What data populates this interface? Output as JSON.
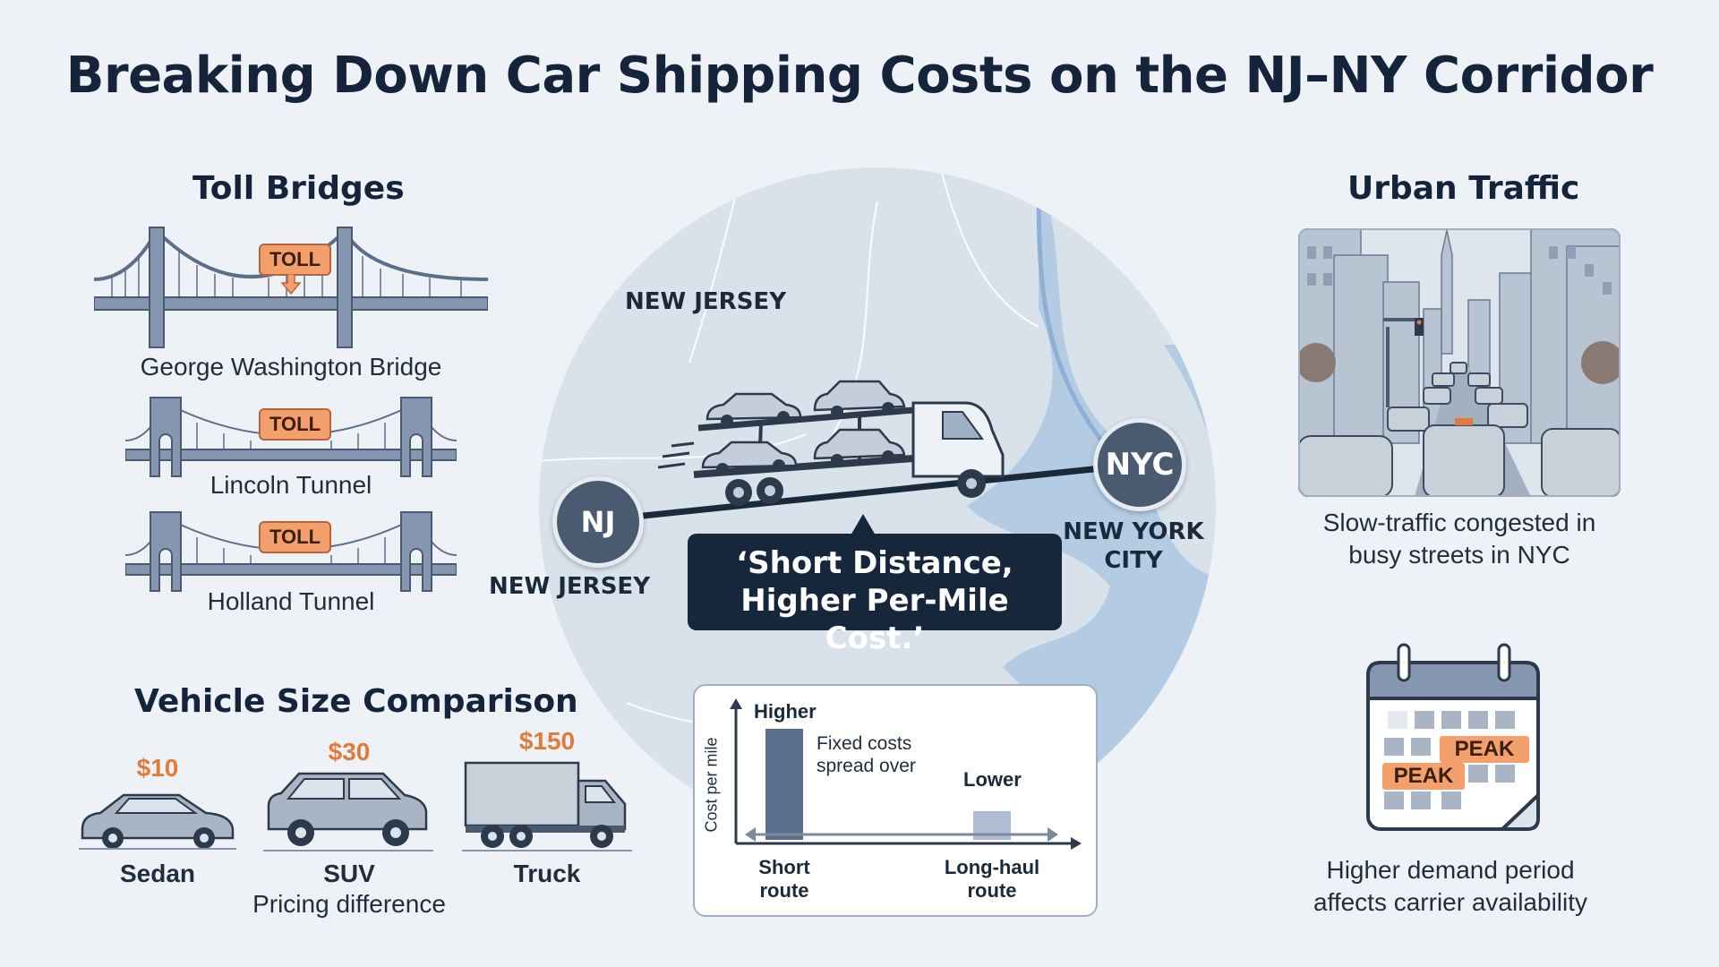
{
  "title": "Breaking Down Car Shipping Costs on the NJ–NY Corridor",
  "toll_bridges": {
    "heading": "Toll Bridges",
    "toll_label": "TOLL",
    "items": [
      {
        "name": "George Washington Bridge"
      },
      {
        "name": "Lincoln Tunnel"
      },
      {
        "name": "Holland Tunnel"
      }
    ]
  },
  "map": {
    "label_nj_top": "NEW JERSEY",
    "label_nj_bottom": "NEW JERSEY",
    "nj_badge": "NJ",
    "nyc_badge": "NYC",
    "nyc_label_line1": "NEW YORK",
    "nyc_label_line2": "CITY",
    "callout_line1": "‘Short Distance,",
    "callout_line2": "Higher Per-Mile Cost.’"
  },
  "urban_traffic": {
    "heading": "Urban Traffic",
    "caption_line1": "Slow-traffic congested in",
    "caption_line2": "busy streets in NYC"
  },
  "vehicle_size": {
    "heading": "Vehicle Size Comparison",
    "vehicles": [
      {
        "name": "Sedan",
        "price": "$10"
      },
      {
        "name": "SUV",
        "price": "$30"
      },
      {
        "name": "Truck",
        "price": "$150"
      }
    ],
    "caption": "Pricing difference"
  },
  "chart_data": {
    "type": "bar",
    "categories": [
      "Short route",
      "Long-haul route"
    ],
    "values": [
      0.85,
      0.22
    ],
    "ylabel": "Cost per mile",
    "bar_labels": [
      "Higher",
      "Lower"
    ],
    "annotation_line1": "Fixed costs",
    "annotation_line2": "spread over",
    "category_lines": [
      [
        "Short",
        "route"
      ],
      [
        "Long-haul",
        "route"
      ]
    ],
    "ylim": [
      0,
      1
    ],
    "colors": [
      "#5b6f8c",
      "#aebdd1"
    ]
  },
  "peak_demand": {
    "peak_label": "PEAK",
    "caption_line1": "Higher demand period",
    "caption_line2": "affects carrier availability"
  }
}
